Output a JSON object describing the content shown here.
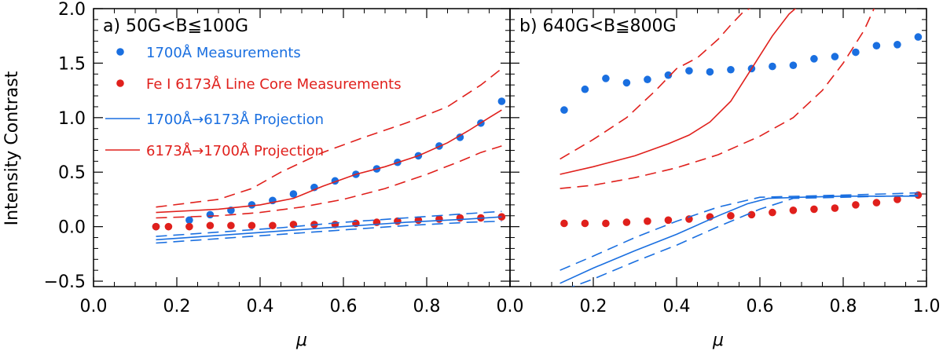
{
  "chart_data": {
    "type": "scatter",
    "ylabel": "Intensity Contrast",
    "xlabel": "μ",
    "xlim": [
      0.0,
      1.0
    ],
    "ylim": [
      -0.55,
      2.0
    ],
    "xticks": [
      "0.0",
      "0.2",
      "0.4",
      "0.6",
      "0.8",
      "1.0"
    ],
    "yticks": [
      "−0.5",
      "0.0",
      "0.5",
      "1.0",
      "1.5",
      "2.0"
    ],
    "colors": {
      "blue": "#1a6fe0",
      "red": "#e0201c"
    },
    "legend": [
      {
        "label": "1700Å Measurements",
        "kind": "dot",
        "color": "blue"
      },
      {
        "label": "Fe I 6173Å Line Core Measurements",
        "kind": "dot",
        "color": "red"
      },
      {
        "label": "1700Å→6173Å Projection",
        "kind": "line",
        "color": "blue"
      },
      {
        "label": "6173Å→1700Å Projection",
        "kind": "line",
        "color": "red"
      }
    ],
    "panels": [
      {
        "title": "a) 50G<B≦100G",
        "series": [
          {
            "name": "1700Å Measurements",
            "kind": "dot",
            "color": "blue",
            "x": [
              0.15,
              0.23,
              0.28,
              0.33,
              0.38,
              0.43,
              0.48,
              0.53,
              0.58,
              0.63,
              0.68,
              0.73,
              0.78,
              0.83,
              0.88,
              0.93,
              0.98
            ],
            "y": [
              0.0,
              0.06,
              0.11,
              0.15,
              0.2,
              0.24,
              0.3,
              0.36,
              0.42,
              0.48,
              0.53,
              0.59,
              0.65,
              0.74,
              0.82,
              0.95,
              1.15
            ]
          },
          {
            "name": "Fe I 6173Å Line Core Measurements",
            "kind": "dot",
            "color": "red",
            "x": [
              0.15,
              0.18,
              0.23,
              0.28,
              0.33,
              0.38,
              0.43,
              0.48,
              0.53,
              0.58,
              0.63,
              0.68,
              0.73,
              0.78,
              0.83,
              0.88,
              0.93,
              0.98
            ],
            "y": [
              0.0,
              0.0,
              0.0,
              0.01,
              0.01,
              0.01,
              0.01,
              0.02,
              0.02,
              0.02,
              0.03,
              0.04,
              0.05,
              0.06,
              0.07,
              0.08,
              0.08,
              0.09
            ]
          },
          {
            "name": "6173Å→1700Å Projection",
            "kind": "line",
            "color": "red",
            "x": [
              0.15,
              0.3,
              0.4,
              0.48,
              0.55,
              0.63,
              0.7,
              0.78,
              0.85,
              0.9,
              0.95,
              0.98
            ],
            "y": [
              0.13,
              0.16,
              0.2,
              0.26,
              0.37,
              0.48,
              0.55,
              0.65,
              0.77,
              0.88,
              1.0,
              1.07
            ]
          },
          {
            "name": "6173Å→1700Å Projection upper",
            "kind": "dash",
            "color": "red",
            "x": [
              0.15,
              0.3,
              0.38,
              0.45,
              0.55,
              0.65,
              0.75,
              0.85,
              0.93,
              0.98
            ],
            "y": [
              0.18,
              0.25,
              0.35,
              0.5,
              0.68,
              0.82,
              0.95,
              1.1,
              1.3,
              1.45
            ]
          },
          {
            "name": "6173Å→1700Å Projection lower",
            "kind": "dash",
            "color": "red",
            "x": [
              0.15,
              0.3,
              0.4,
              0.5,
              0.6,
              0.7,
              0.8,
              0.88,
              0.93,
              0.98
            ],
            "y": [
              0.08,
              0.1,
              0.13,
              0.18,
              0.25,
              0.35,
              0.48,
              0.6,
              0.68,
              0.74
            ]
          },
          {
            "name": "1700Å→6173Å Projection",
            "kind": "line",
            "color": "blue",
            "x": [
              0.15,
              0.3,
              0.45,
              0.6,
              0.75,
              0.9,
              0.98
            ],
            "y": [
              -0.12,
              -0.08,
              -0.04,
              0.0,
              0.04,
              0.07,
              0.09
            ]
          },
          {
            "name": "1700Å→6173Å Projection upper",
            "kind": "dash",
            "color": "blue",
            "x": [
              0.15,
              0.3,
              0.45,
              0.6,
              0.75,
              0.9,
              0.98
            ],
            "y": [
              -0.09,
              -0.05,
              -0.01,
              0.04,
              0.08,
              0.12,
              0.14
            ]
          },
          {
            "name": "1700Å→6173Å Projection lower",
            "kind": "dash",
            "color": "blue",
            "x": [
              0.15,
              0.3,
              0.45,
              0.6,
              0.75,
              0.9,
              0.98
            ],
            "y": [
              -0.15,
              -0.11,
              -0.07,
              -0.03,
              0.01,
              0.04,
              0.05
            ]
          }
        ]
      },
      {
        "title": "b) 640G<B≦800G",
        "series": [
          {
            "name": "1700Å Measurements",
            "kind": "dot",
            "color": "blue",
            "x": [
              0.13,
              0.18,
              0.23,
              0.28,
              0.33,
              0.38,
              0.43,
              0.48,
              0.53,
              0.58,
              0.63,
              0.68,
              0.73,
              0.78,
              0.83,
              0.88,
              0.93,
              0.98
            ],
            "y": [
              1.07,
              1.26,
              1.36,
              1.32,
              1.35,
              1.39,
              1.43,
              1.42,
              1.44,
              1.45,
              1.47,
              1.48,
              1.54,
              1.56,
              1.6,
              1.66,
              1.67,
              1.74
            ]
          },
          {
            "name": "Fe I 6173Å Line Core Measurements",
            "kind": "dot",
            "color": "red",
            "x": [
              0.13,
              0.18,
              0.23,
              0.28,
              0.33,
              0.38,
              0.43,
              0.48,
              0.53,
              0.58,
              0.63,
              0.68,
              0.73,
              0.78,
              0.83,
              0.88,
              0.93,
              0.98
            ],
            "y": [
              0.03,
              0.03,
              0.03,
              0.04,
              0.05,
              0.06,
              0.07,
              0.09,
              0.1,
              0.11,
              0.13,
              0.15,
              0.16,
              0.17,
              0.2,
              0.22,
              0.25,
              0.29
            ]
          },
          {
            "name": "6173Å→1700Å Projection",
            "kind": "line",
            "color": "red",
            "x": [
              0.12,
              0.2,
              0.3,
              0.38,
              0.43,
              0.48,
              0.53,
              0.58,
              0.63,
              0.67,
              0.7
            ],
            "y": [
              0.48,
              0.55,
              0.65,
              0.76,
              0.84,
              0.96,
              1.15,
              1.45,
              1.75,
              1.95,
              2.05
            ]
          },
          {
            "name": "6173Å→1700Å Projection upper",
            "kind": "dash",
            "color": "red",
            "x": [
              0.12,
              0.2,
              0.28,
              0.35,
              0.4,
              0.45,
              0.5,
              0.53,
              0.56,
              0.6
            ],
            "y": [
              0.62,
              0.8,
              1.0,
              1.25,
              1.45,
              1.55,
              1.72,
              1.85,
              1.97,
              2.05
            ]
          },
          {
            "name": "6173Å→1700Å Projection lower",
            "kind": "dash",
            "color": "red",
            "x": [
              0.12,
              0.2,
              0.3,
              0.4,
              0.5,
              0.6,
              0.68,
              0.75,
              0.8,
              0.85,
              0.88
            ],
            "y": [
              0.35,
              0.38,
              0.45,
              0.54,
              0.66,
              0.83,
              1.0,
              1.25,
              1.5,
              1.8,
              2.05
            ]
          },
          {
            "name": "1700Å→6173Å Projection",
            "kind": "line",
            "color": "blue",
            "x": [
              0.12,
              0.2,
              0.3,
              0.4,
              0.5,
              0.57,
              0.62,
              0.7,
              0.8,
              0.9,
              0.98
            ],
            "y": [
              -0.52,
              -0.38,
              -0.22,
              -0.07,
              0.1,
              0.21,
              0.26,
              0.27,
              0.28,
              0.28,
              0.28
            ]
          },
          {
            "name": "1700Å→6173Å Projection upper",
            "kind": "dash",
            "color": "blue",
            "x": [
              0.12,
              0.2,
              0.3,
              0.4,
              0.5,
              0.6,
              0.7,
              0.8,
              0.9,
              0.98
            ],
            "y": [
              -0.4,
              -0.27,
              -0.1,
              0.05,
              0.18,
              0.27,
              0.28,
              0.29,
              0.3,
              0.31
            ]
          },
          {
            "name": "1700Å→6173Å Projection lower",
            "kind": "dash",
            "color": "blue",
            "x": [
              0.13,
              0.2,
              0.3,
              0.4,
              0.5,
              0.6,
              0.68,
              0.8,
              0.9,
              0.98
            ],
            "y": [
              -0.58,
              -0.48,
              -0.32,
              -0.17,
              0.0,
              0.16,
              0.26,
              0.27,
              0.28,
              0.29
            ]
          }
        ]
      }
    ]
  }
}
